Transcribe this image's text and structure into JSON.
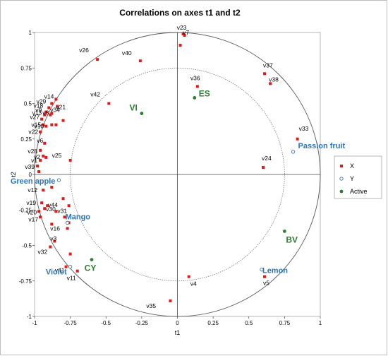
{
  "chart_data": {
    "type": "scatter",
    "title": "Correlations on axes t1 and t2",
    "xlabel": "t1",
    "ylabel": "t2",
    "xlim": [
      -1,
      1
    ],
    "ylim": [
      -1,
      1
    ],
    "x_ticks": [
      "-1",
      "-0.75",
      "-0.5",
      "-0.25",
      "0",
      "0.25",
      "0.5",
      "0.75",
      "1"
    ],
    "y_ticks": [
      "1",
      "0.75",
      "0.5",
      "0.25",
      "0",
      "-0.25",
      "-0.5",
      "-0.75",
      "-1"
    ],
    "grid": false,
    "unit_circle": true,
    "inner_circle_radius": 0.75,
    "legend_position": "right",
    "colors": {
      "X": "#e31a1c",
      "Y": "#2e75b6",
      "Active": "#2e7d32"
    },
    "series": [
      {
        "name": "X",
        "marker": "filled-square",
        "points": [
          {
            "label": "v23",
            "x": 0.04,
            "y": 0.99
          },
          {
            "label": "v7",
            "x": 0.05,
            "y": 0.98
          },
          {
            "label": "",
            "x": 0.02,
            "y": 0.91
          },
          {
            "label": "v26",
            "x": -0.56,
            "y": 0.81
          },
          {
            "label": "v40",
            "x": -0.26,
            "y": 0.8
          },
          {
            "label": "v37",
            "x": 0.61,
            "y": 0.71
          },
          {
            "label": "v38",
            "x": 0.65,
            "y": 0.64
          },
          {
            "label": "v36",
            "x": 0.14,
            "y": 0.62
          },
          {
            "label": "v42",
            "x": -0.48,
            "y": 0.5
          },
          {
            "label": "v33",
            "x": 0.84,
            "y": 0.25
          },
          {
            "label": "v24",
            "x": 0.6,
            "y": 0.05
          },
          {
            "label": "v4",
            "x": 0.08,
            "y": -0.72
          },
          {
            "label": "v5",
            "x": 0.61,
            "y": -0.72
          },
          {
            "label": "v35",
            "x": -0.05,
            "y": -0.89
          },
          {
            "label": "v14",
            "x": -0.85,
            "y": 0.53
          },
          {
            "label": "v29",
            "x": -0.88,
            "y": 0.5
          },
          {
            "label": "v18",
            "x": -0.9,
            "y": 0.47
          },
          {
            "label": "v21",
            "x": -0.84,
            "y": 0.48
          },
          {
            "label": "v9",
            "x": -0.92,
            "y": 0.44
          },
          {
            "label": "v13",
            "x": -0.93,
            "y": 0.42
          },
          {
            "label": "v8",
            "x": -0.89,
            "y": 0.42
          },
          {
            "label": "v34",
            "x": -0.88,
            "y": 0.43
          },
          {
            "label": "v27",
            "x": -0.95,
            "y": 0.39
          },
          {
            "label": "",
            "x": -0.8,
            "y": 0.38
          },
          {
            "label": "v15",
            "x": -0.94,
            "y": 0.35
          },
          {
            "label": "v10",
            "x": -0.92,
            "y": 0.34
          },
          {
            "label": "",
            "x": -0.88,
            "y": 0.35
          },
          {
            "label": "",
            "x": -0.85,
            "y": 0.35
          },
          {
            "label": "v22",
            "x": -0.96,
            "y": 0.3
          },
          {
            "label": "v6",
            "x": -0.93,
            "y": 0.22
          },
          {
            "label": "v28",
            "x": -0.96,
            "y": 0.17
          },
          {
            "label": "v2",
            "x": -0.94,
            "y": 0.13
          },
          {
            "label": "",
            "x": -0.92,
            "y": 0.12
          },
          {
            "label": "v1",
            "x": -0.96,
            "y": 0.1
          },
          {
            "label": "v25",
            "x": -0.75,
            "y": 0.1
          },
          {
            "label": "v39",
            "x": -0.98,
            "y": 0.06
          },
          {
            "label": "",
            "x": -0.97,
            "y": 0.02
          },
          {
            "label": "v12",
            "x": -0.94,
            "y": -0.11
          },
          {
            "label": "",
            "x": -0.88,
            "y": -0.09
          },
          {
            "label": "v19",
            "x": -0.95,
            "y": -0.2
          },
          {
            "label": "v44",
            "x": -0.91,
            "y": -0.22
          },
          {
            "label": "v30",
            "x": -0.93,
            "y": -0.24
          },
          {
            "label": "v20",
            "x": -0.97,
            "y": -0.26
          },
          {
            "label": "",
            "x": -0.8,
            "y": -0.17
          },
          {
            "label": "",
            "x": -0.76,
            "y": -0.22
          },
          {
            "label": "v17",
            "x": -0.96,
            "y": -0.3
          },
          {
            "label": "v31",
            "x": -0.85,
            "y": -0.26
          },
          {
            "label": "",
            "x": -0.79,
            "y": -0.3
          },
          {
            "label": "v16",
            "x": -0.88,
            "y": -0.35
          },
          {
            "label": "",
            "x": -0.76,
            "y": -0.34
          },
          {
            "label": "",
            "x": -0.77,
            "y": -0.38
          },
          {
            "label": "v3",
            "x": -0.86,
            "y": -0.47
          },
          {
            "label": "v32",
            "x": -0.89,
            "y": -0.51
          },
          {
            "label": "",
            "x": -0.75,
            "y": -0.56
          },
          {
            "label": "v41",
            "x": -0.78,
            "y": -0.65
          },
          {
            "label": "v11",
            "x": -0.7,
            "y": -0.68
          }
        ]
      },
      {
        "name": "Y",
        "marker": "open-circle",
        "points": [
          {
            "label": "Passion fruit",
            "x": 0.81,
            "y": 0.16
          },
          {
            "label": "Green apple",
            "x": -0.83,
            "y": -0.04
          },
          {
            "label": "Mango",
            "x": -0.77,
            "y": -0.34
          },
          {
            "label": "Violet",
            "x": -0.75,
            "y": -0.65
          },
          {
            "label": "Lemon",
            "x": 0.59,
            "y": -0.67
          }
        ]
      },
      {
        "name": "Active",
        "marker": "filled-circle",
        "points": [
          {
            "label": "VI",
            "x": -0.25,
            "y": 0.43
          },
          {
            "label": "ES",
            "x": 0.12,
            "y": 0.54
          },
          {
            "label": "BV",
            "x": 0.75,
            "y": -0.4
          },
          {
            "label": "CY",
            "x": -0.6,
            "y": -0.6
          }
        ]
      }
    ]
  }
}
